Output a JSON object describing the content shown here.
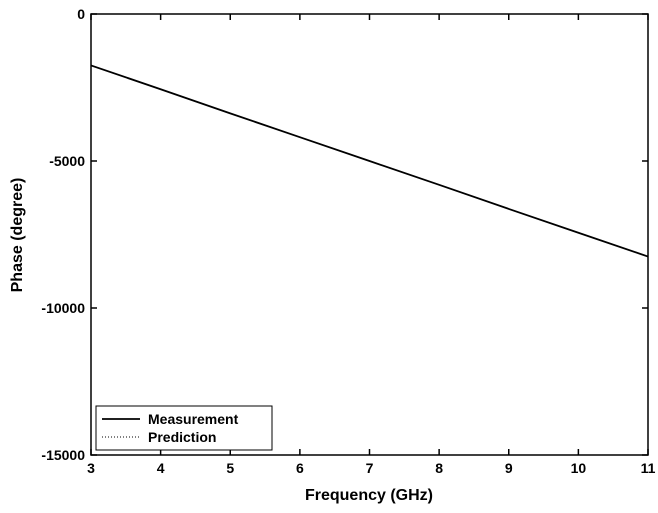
{
  "chart_data": {
    "type": "line",
    "xlabel": "Frequency (GHz)",
    "ylabel": "Phase (degree)",
    "x": [
      3,
      4,
      5,
      6,
      7,
      8,
      9,
      10,
      11
    ],
    "series": [
      {
        "name": "Measurement",
        "color": "#000000",
        "style": "solid",
        "values": [
          -1750,
          -2560,
          -3380,
          -4190,
          -5000,
          -5810,
          -6630,
          -7440,
          -8250
        ]
      },
      {
        "name": "Prediction",
        "color": "#000000",
        "style": "dotted",
        "values": [
          -1750,
          -2560,
          -3380,
          -4190,
          -5000,
          -5810,
          -6630,
          -7440,
          -8250
        ]
      }
    ],
    "xlim": [
      3,
      11
    ],
    "ylim": [
      -15000,
      0
    ],
    "xticks": [
      3,
      4,
      5,
      6,
      7,
      8,
      9,
      10,
      11
    ],
    "yticks": [
      -15000,
      -10000,
      -5000,
      0
    ],
    "grid": false,
    "legend": "lower left"
  }
}
